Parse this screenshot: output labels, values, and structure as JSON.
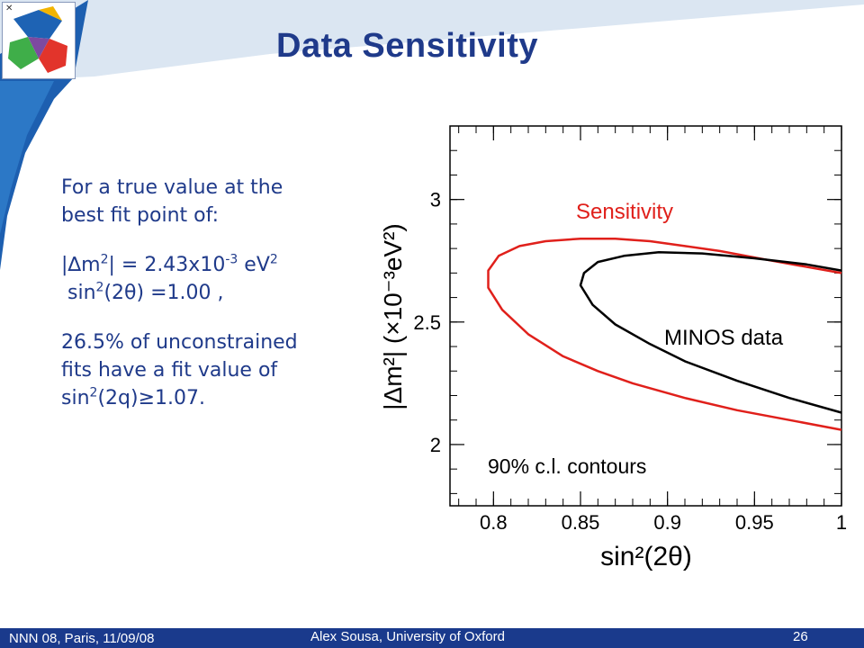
{
  "slide": {
    "title": "Data Sensitivity",
    "intro_line1": "For a true value at the",
    "intro_line2": "best fit point of:",
    "dm2_prefix": "|∆m",
    "dm2_sup": "2",
    "dm2_mid": "| = 2.43x10",
    "dm2_exp": "-3",
    "dm2_unit": " eV",
    "dm2_unit_sup": "2",
    "sin_prefix": "sin",
    "sin_sup": "2",
    "sin_rest": "(2θ) =1.00 ,",
    "result_line1": "26.5% of unconstrained",
    "result_line2": "fits have a fit value of",
    "result_prefix": "sin",
    "result_sup": "2",
    "result_rest": "(2q)≥1.07."
  },
  "footer": {
    "left": "NNN 08, Paris, 11/09/08",
    "center": "Alex Sousa, University of Oxford",
    "page": "26"
  },
  "colors": {
    "title": "#1f3a8a",
    "sidebar": "#1d5fb0",
    "footer": "#1a3a8c",
    "sensitivity": "#e0201b",
    "data": "#000000"
  },
  "chart_data": {
    "type": "line",
    "xlabel": "sin²(2θ)",
    "ylabel": "|Δm²| (×10⁻³eV²)",
    "xlim": [
      0.775,
      1.0
    ],
    "ylim": [
      1.75,
      3.3
    ],
    "xticks": [
      0.8,
      0.85,
      0.9,
      0.95,
      1
    ],
    "xtick_labels": [
      "0.8",
      "0.85",
      "0.9",
      "0.95",
      "1"
    ],
    "yticks": [
      2,
      2.5,
      3
    ],
    "ytick_labels": [
      "2",
      "2.5",
      "3"
    ],
    "annotation": "90% c.l. contours",
    "series": [
      {
        "name": "Sensitivity",
        "color": "#e0201b",
        "x": [
          1.0,
          0.97,
          0.94,
          0.91,
          0.88,
          0.86,
          0.84,
          0.82,
          0.805,
          0.797,
          0.797,
          0.803,
          0.815,
          0.83,
          0.85,
          0.87,
          0.89,
          0.91,
          0.93,
          0.96,
          1.0
        ],
        "y": [
          2.06,
          2.1,
          2.14,
          2.19,
          2.25,
          2.3,
          2.36,
          2.45,
          2.55,
          2.64,
          2.71,
          2.77,
          2.81,
          2.83,
          2.84,
          2.84,
          2.83,
          2.81,
          2.79,
          2.75,
          2.7
        ]
      },
      {
        "name": "MINOS data",
        "color": "#000000",
        "x": [
          1.0,
          0.97,
          0.94,
          0.91,
          0.89,
          0.87,
          0.857,
          0.85,
          0.852,
          0.86,
          0.875,
          0.895,
          0.92,
          0.95,
          0.98,
          1.0
        ],
        "y": [
          2.13,
          2.19,
          2.26,
          2.34,
          2.41,
          2.49,
          2.57,
          2.65,
          2.7,
          2.745,
          2.77,
          2.785,
          2.78,
          2.76,
          2.735,
          2.71
        ]
      }
    ]
  }
}
